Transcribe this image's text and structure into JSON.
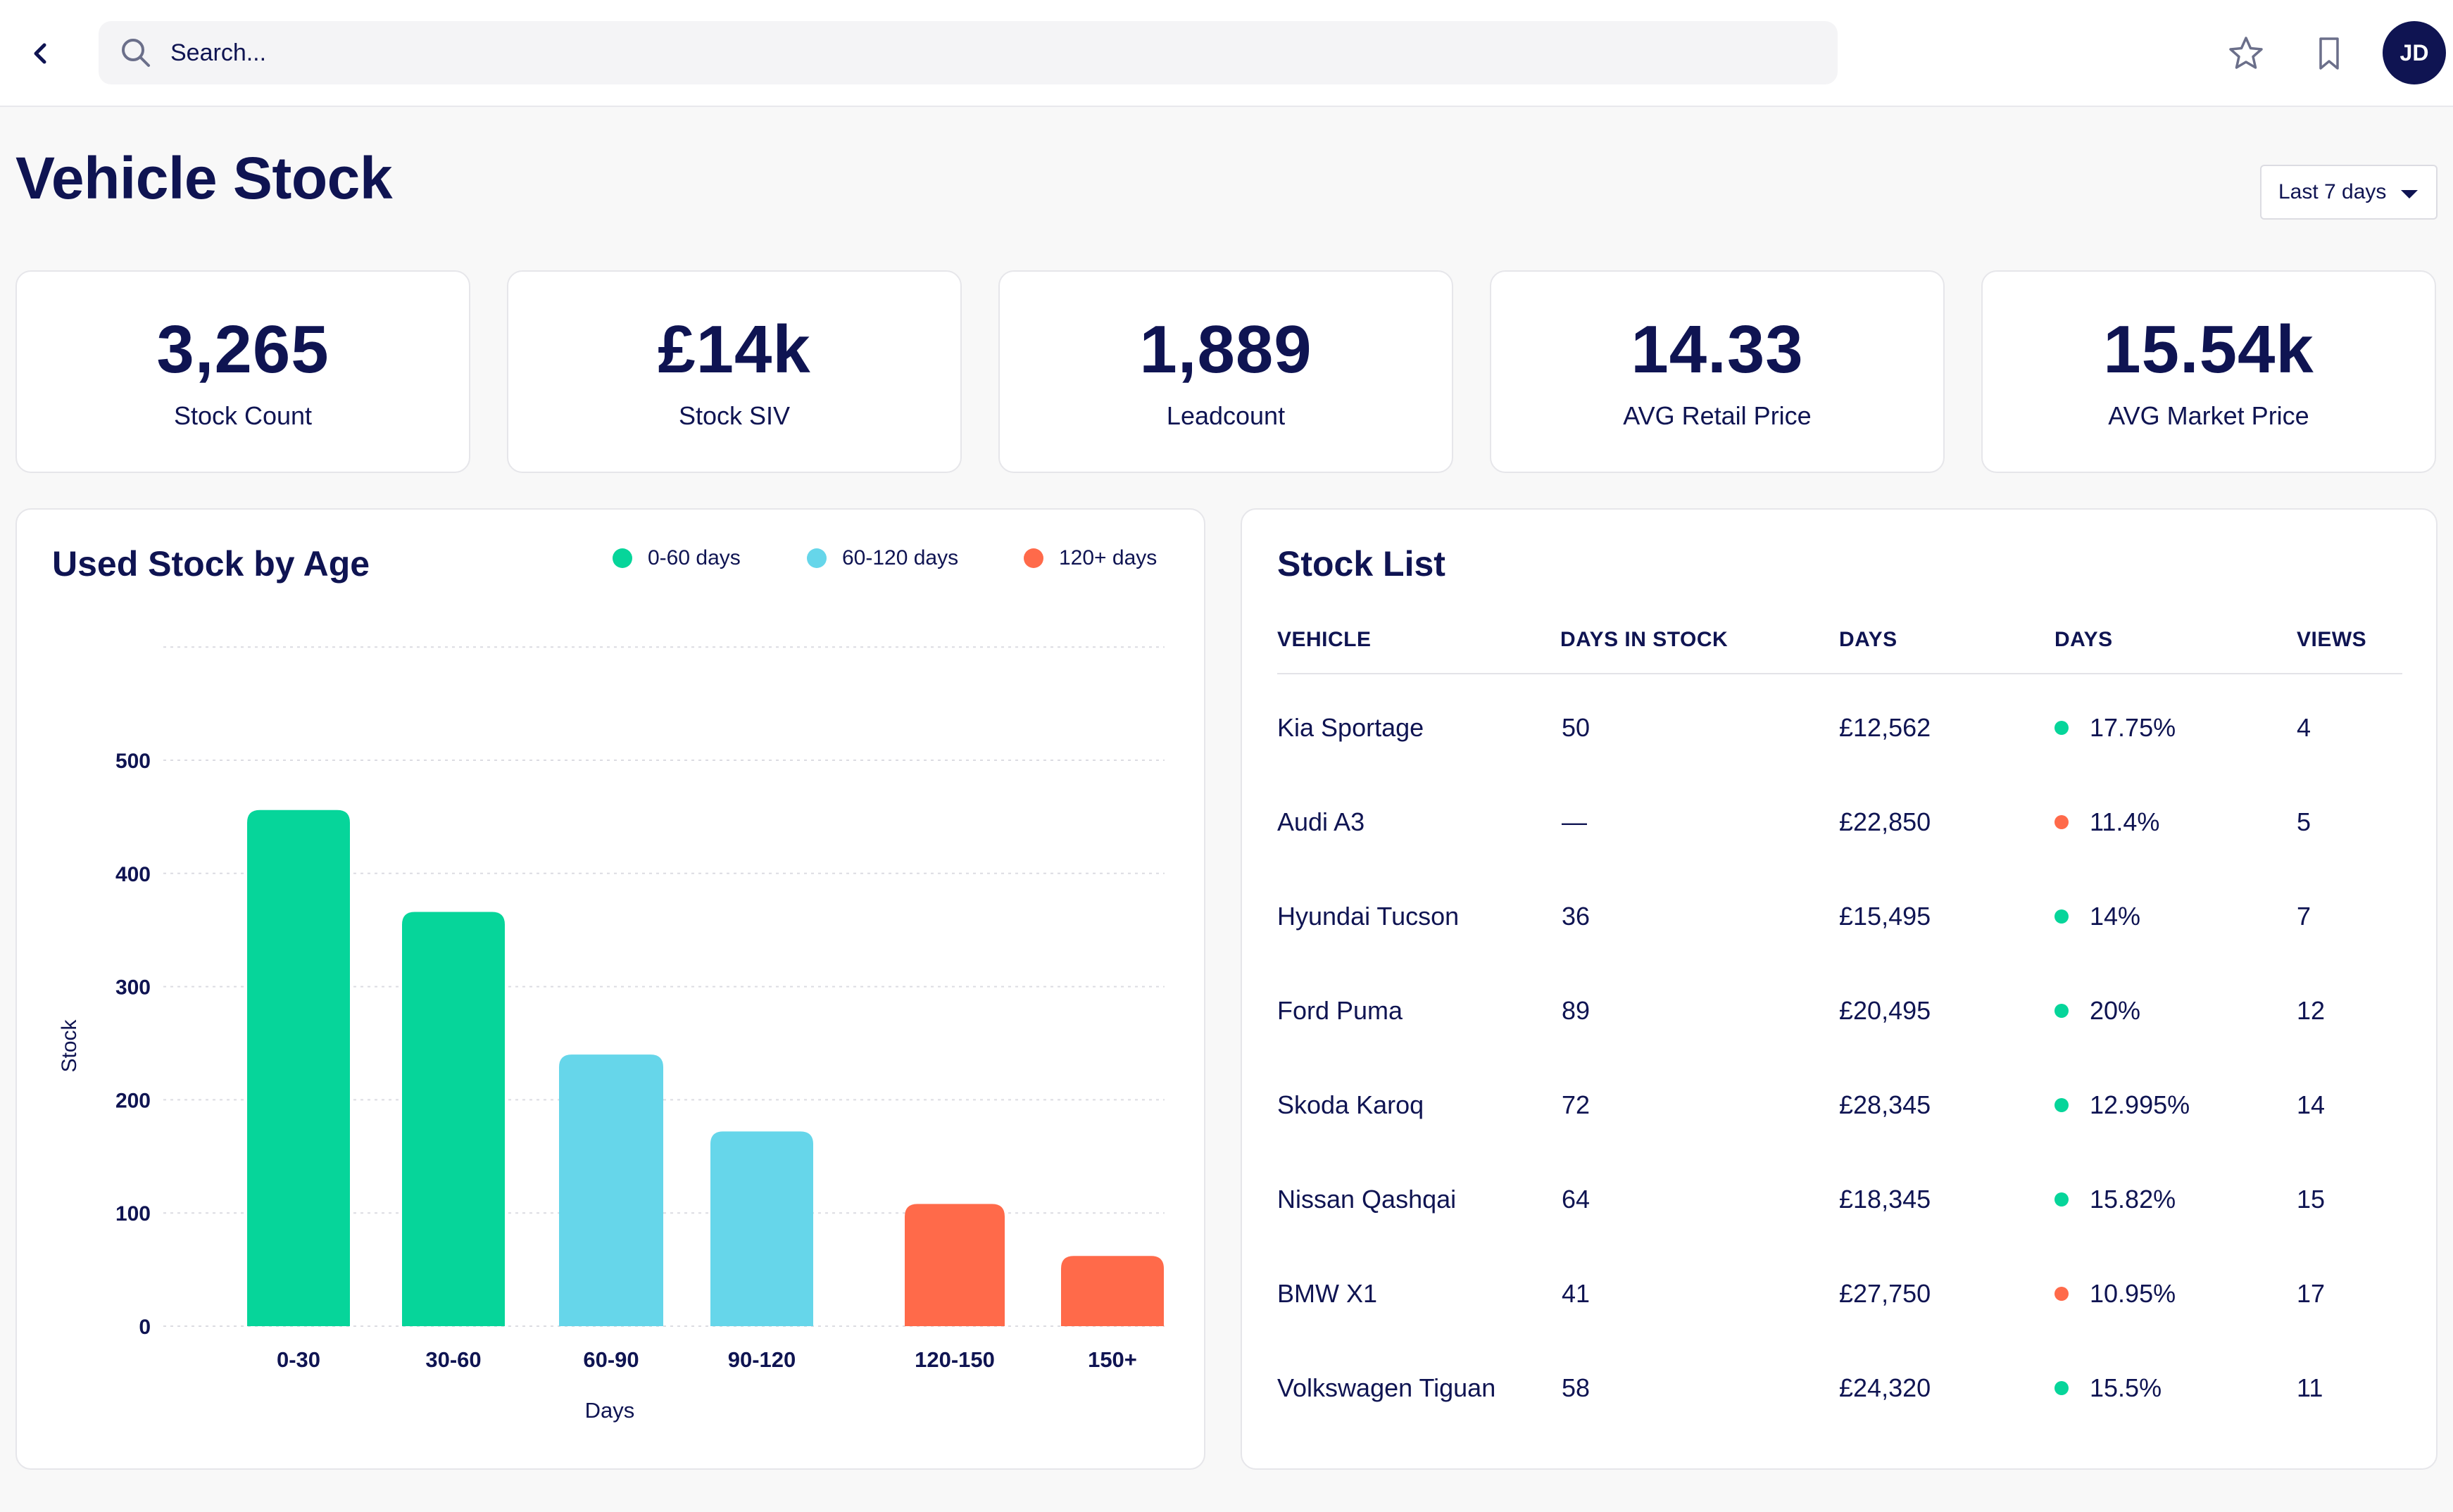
{
  "header": {
    "search_placeholder": "Search...",
    "avatar_initials": "JD"
  },
  "page": {
    "title": "Vehicle Stock",
    "date_range": "Last 7 days"
  },
  "kpis": [
    {
      "value": "3,265",
      "label": "Stock Count"
    },
    {
      "value": "£14k",
      "label": "Stock SIV"
    },
    {
      "value": "1,889",
      "label": "Leadcount"
    },
    {
      "value": "14.33",
      "label": "AVG Retail Price"
    },
    {
      "value": "15.54k",
      "label": "AVG Market Price"
    }
  ],
  "stock_chart": {
    "title": "Used Stock by Age",
    "legend": [
      {
        "label": "0-60 days",
        "color": "#06d59a"
      },
      {
        "label": "60-120 days",
        "color": "#66d6ea"
      },
      {
        "label": "120+ days",
        "color": "#ff6a4a"
      }
    ]
  },
  "chart_data": {
    "type": "bar",
    "title": "Used Stock by Age",
    "xlabel": "Days",
    "ylabel": "Stock",
    "categories": [
      "0-30",
      "30-60",
      "60-90",
      "90-120",
      "120-150",
      "150+"
    ],
    "values": [
      456,
      366,
      240,
      172,
      108,
      62
    ],
    "colors": [
      "#06d59a",
      "#06d59a",
      "#66d6ea",
      "#66d6ea",
      "#ff6a4a",
      "#ff6a4a"
    ],
    "ylim": [
      0,
      600
    ],
    "yticks": [
      0,
      100,
      200,
      300,
      400,
      500
    ],
    "grid": true,
    "legend_position": "top-right"
  },
  "stock_list": {
    "title": "Stock List",
    "columns": [
      "VEHICLE",
      "DAYS IN STOCK",
      "DAYS",
      "DAYS",
      "VIEWS"
    ],
    "rows": [
      {
        "vehicle": "Kia Sportage",
        "days_in_stock": "50",
        "price": "£12,562",
        "pct": "17.75%",
        "status_color": "#06d59a",
        "views": "4"
      },
      {
        "vehicle": "Audi A3",
        "days_in_stock": "—",
        "price": "£22,850",
        "pct": "11.4%",
        "status_color": "#ff6a4a",
        "views": "5"
      },
      {
        "vehicle": "Hyundai Tucson",
        "days_in_stock": "36",
        "price": "£15,495",
        "pct": "14%",
        "status_color": "#06d59a",
        "views": "7"
      },
      {
        "vehicle": "Ford Puma",
        "days_in_stock": "89",
        "price": "£20,495",
        "pct": "20%",
        "status_color": "#06d59a",
        "views": "12"
      },
      {
        "vehicle": "Skoda Karoq",
        "days_in_stock": "72",
        "price": "£28,345",
        "pct": "12.995%",
        "status_color": "#06d59a",
        "views": "14"
      },
      {
        "vehicle": "Nissan Qashqai",
        "days_in_stock": "64",
        "price": "£18,345",
        "pct": "15.82%",
        "status_color": "#06d59a",
        "views": "15"
      },
      {
        "vehicle": "BMW X1",
        "days_in_stock": "41",
        "price": "£27,750",
        "pct": "10.95%",
        "status_color": "#ff6a4a",
        "views": "17"
      },
      {
        "vehicle": "Volkswagen Tiguan",
        "days_in_stock": "58",
        "price": "£24,320",
        "pct": "15.5%",
        "status_color": "#06d59a",
        "views": "11"
      }
    ]
  },
  "icons": {
    "back": "chevron-left-icon",
    "search": "search-icon",
    "star": "star-icon",
    "bookmark": "bookmark-icon"
  }
}
